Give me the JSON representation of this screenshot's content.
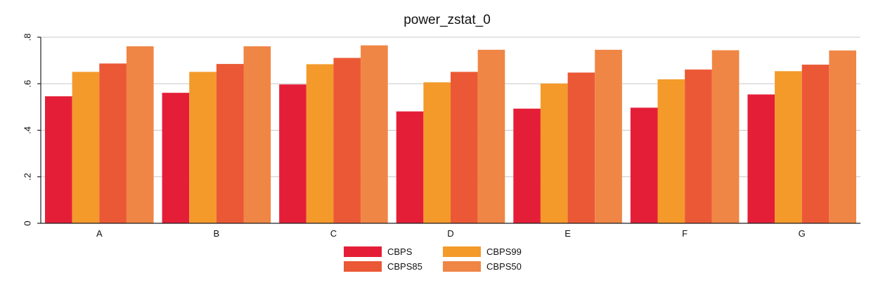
{
  "chart_data": {
    "type": "bar",
    "title": "power_zstat_0",
    "xlabel": "",
    "ylabel": "",
    "categories": [
      "A",
      "B",
      "C",
      "D",
      "E",
      "F",
      "G"
    ],
    "series": [
      {
        "name": "CBPS",
        "color": "#e51e38",
        "values": [
          0.546,
          0.561,
          0.597,
          0.481,
          0.493,
          0.497,
          0.554
        ]
      },
      {
        "name": "CBPS99",
        "color": "#f39a2b",
        "values": [
          0.651,
          0.651,
          0.684,
          0.606,
          0.601,
          0.619,
          0.654
        ]
      },
      {
        "name": "CBPS85",
        "color": "#eb5836",
        "values": [
          0.687,
          0.685,
          0.711,
          0.651,
          0.648,
          0.661,
          0.682
        ]
      },
      {
        "name": "CBPS50",
        "color": "#f08645",
        "values": [
          0.761,
          0.761,
          0.765,
          0.746,
          0.746,
          0.744,
          0.743
        ]
      }
    ],
    "ylim": [
      0,
      0.8
    ],
    "yticks": [
      {
        "value": 0,
        "label": "0"
      },
      {
        "value": 0.2,
        "label": ".2"
      },
      {
        "value": 0.4,
        "label": ".4"
      },
      {
        "value": 0.6,
        "label": ".6"
      },
      {
        "value": 0.8,
        "label": ".8"
      }
    ],
    "grid": true,
    "legend_position": "bottom-center"
  }
}
